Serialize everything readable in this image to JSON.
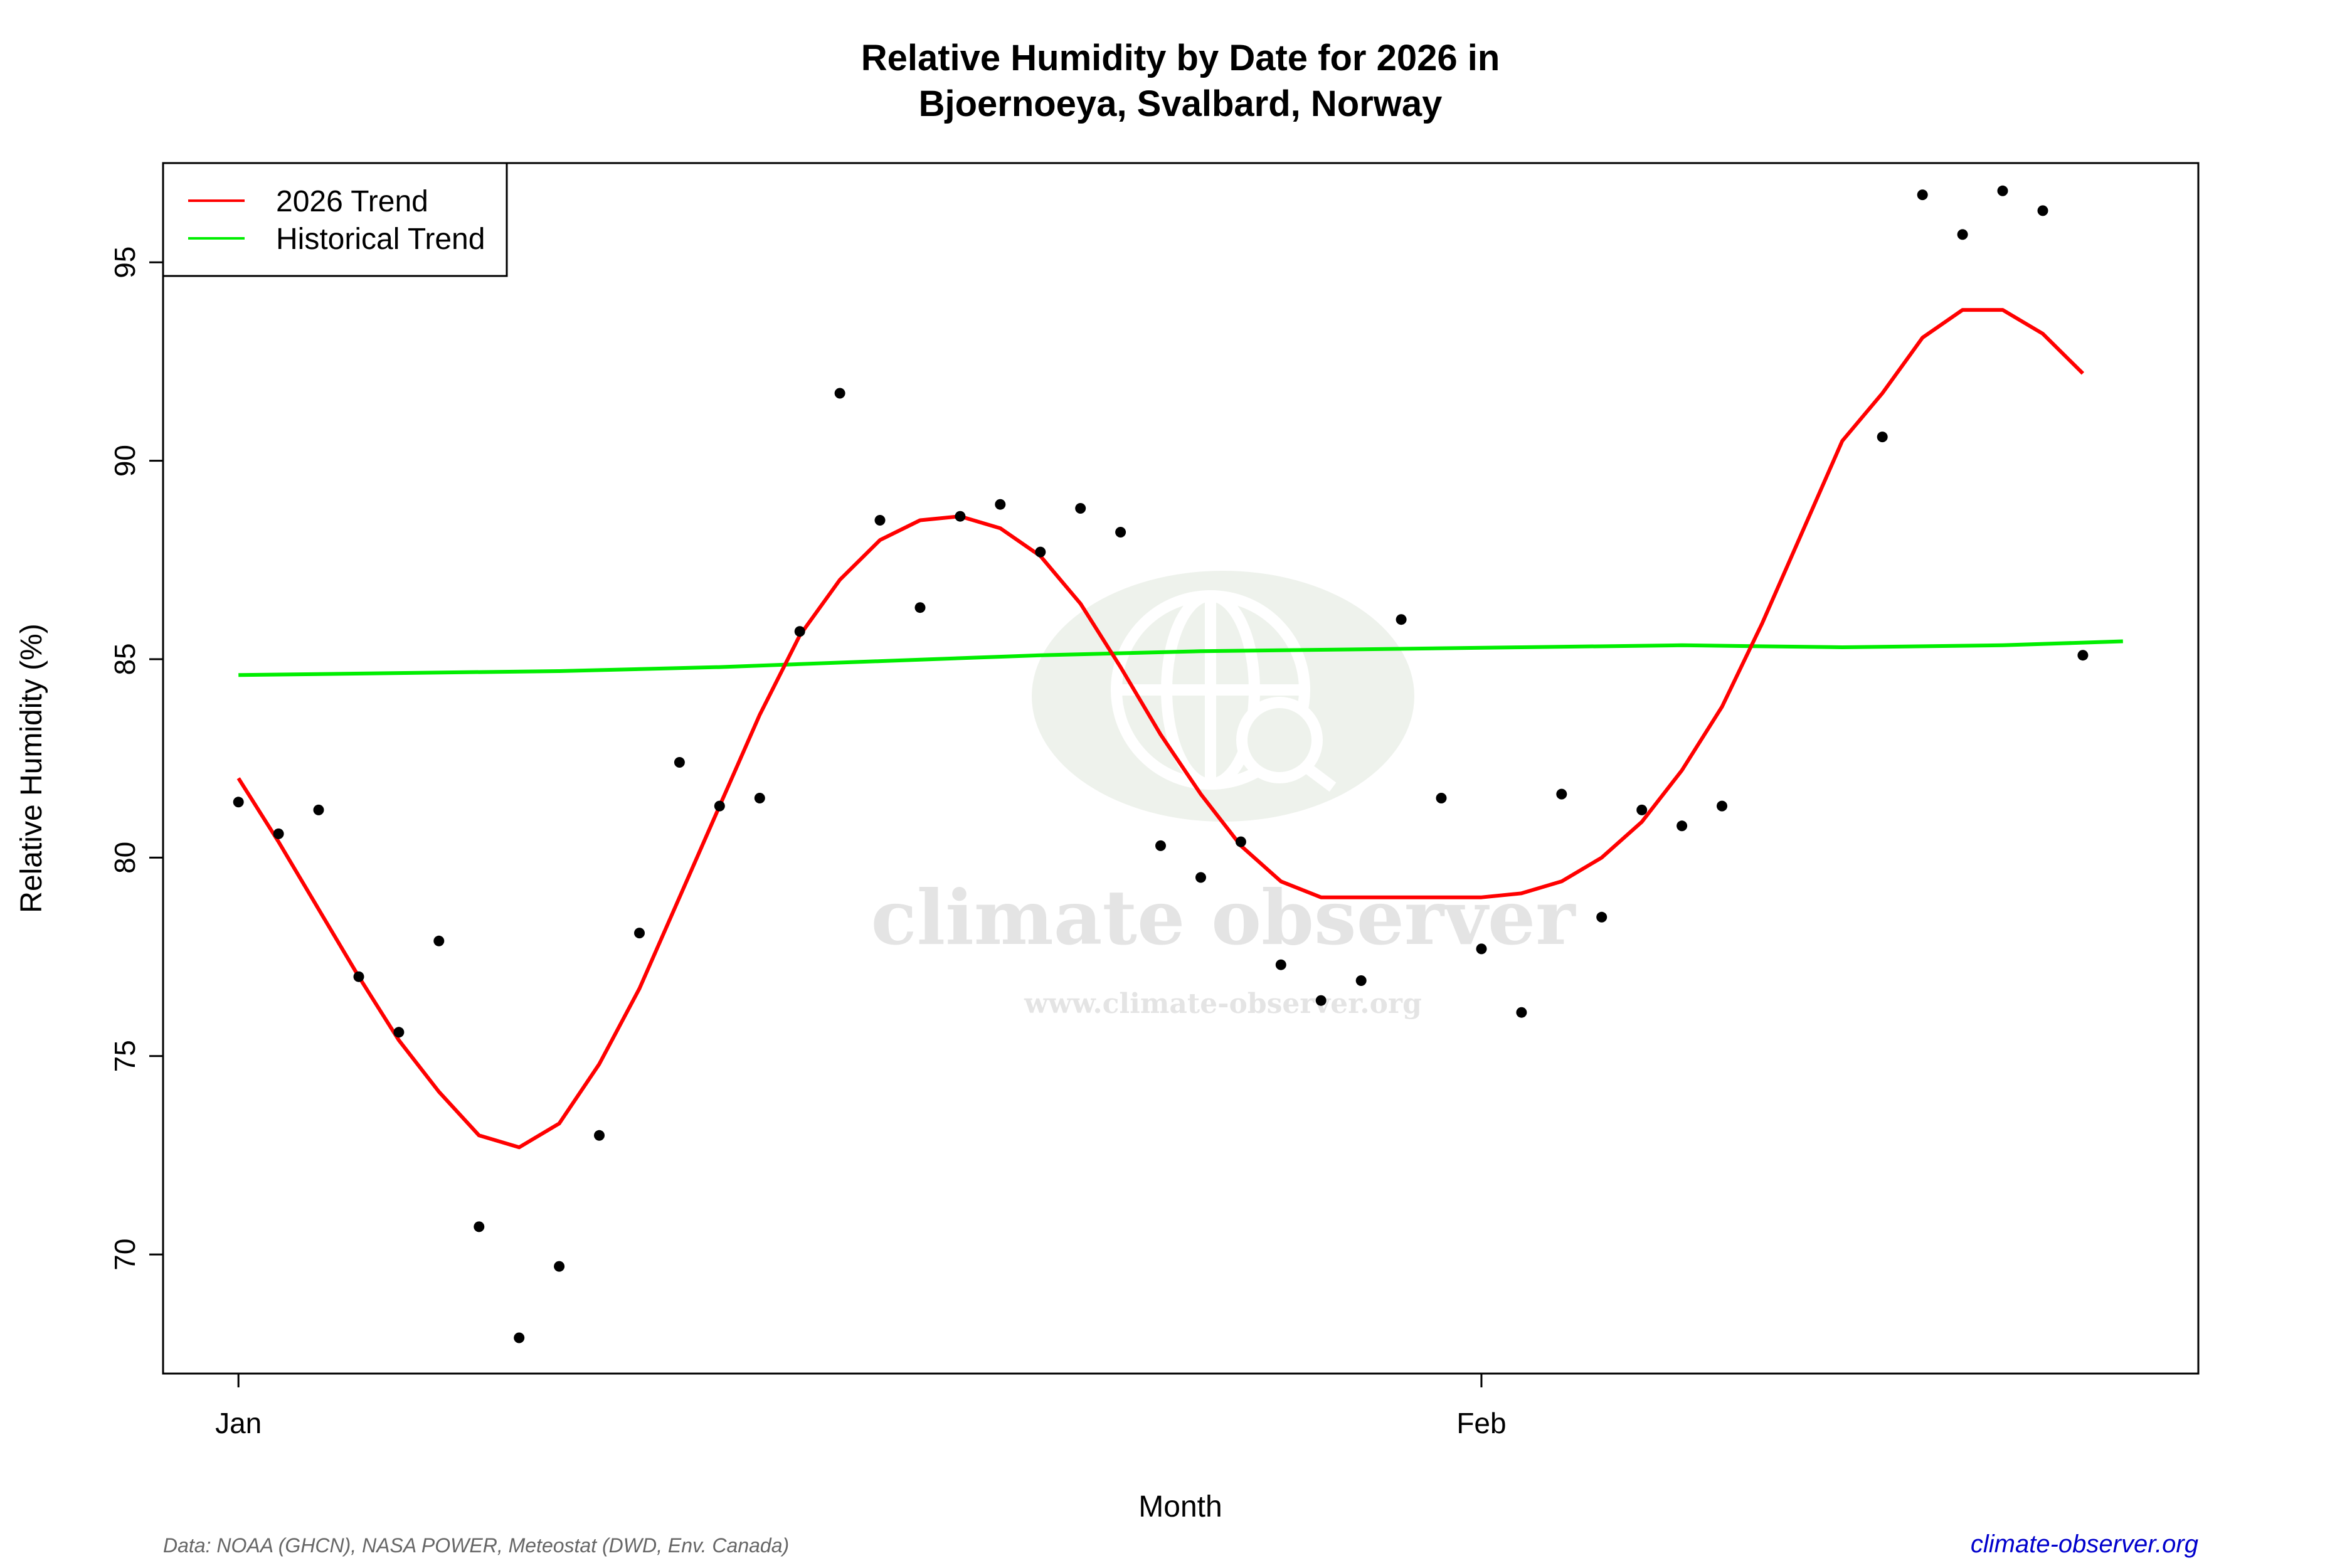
{
  "chart_data": {
    "type": "scatter",
    "title_line1": "Relative Humidity by Date for 2026 in",
    "title_line2": "Bjoernoeya, Svalbard, Norway",
    "xlabel": "Month",
    "ylabel": "Relative Humidity (%)",
    "x_ticks": [
      {
        "label": "Jan",
        "x": "2026-01-01"
      },
      {
        "label": "Feb",
        "x": "2026-02-01"
      }
    ],
    "xlim": [
      "2026-01-01",
      "2026-02-17"
    ],
    "y_ticks": [
      70,
      75,
      80,
      85,
      90,
      95
    ],
    "ylim": [
      67,
      97.5
    ],
    "legend_position": "top-left",
    "legend": [
      {
        "label": "2026 Trend",
        "color": "#ff0000"
      },
      {
        "label": "Historical Trend",
        "color": "#00ee00"
      }
    ],
    "observed": {
      "name": "",
      "color": "#000000",
      "points": [
        [
          "2026-01-01",
          81.4
        ],
        [
          "2026-01-02",
          80.6
        ],
        [
          "2026-01-03",
          81.2
        ],
        [
          "2026-01-04",
          77.0
        ],
        [
          "2026-01-05",
          75.6
        ],
        [
          "2026-01-06",
          77.9
        ],
        [
          "2026-01-07",
          70.7
        ],
        [
          "2026-01-08",
          67.9
        ],
        [
          "2026-01-09",
          69.7
        ],
        [
          "2026-01-10",
          73.0
        ],
        [
          "2026-01-11",
          78.1
        ],
        [
          "2026-01-12",
          82.4
        ],
        [
          "2026-01-13",
          81.3
        ],
        [
          "2026-01-14",
          81.5
        ],
        [
          "2026-01-15",
          85.7
        ],
        [
          "2026-01-16",
          91.7
        ],
        [
          "2026-01-17",
          88.5
        ],
        [
          "2026-01-18",
          86.3
        ],
        [
          "2026-01-19",
          88.6
        ],
        [
          "2026-01-20",
          88.9
        ],
        [
          "2026-01-21",
          87.7
        ],
        [
          "2026-01-22",
          88.8
        ],
        [
          "2026-01-23",
          88.2
        ],
        [
          "2026-01-24",
          80.3
        ],
        [
          "2026-01-25",
          79.5
        ],
        [
          "2026-01-26",
          80.4
        ],
        [
          "2026-01-27",
          77.3
        ],
        [
          "2026-01-28",
          76.4
        ],
        [
          "2026-01-29",
          76.9
        ],
        [
          "2026-01-30",
          86.0
        ],
        [
          "2026-01-31",
          81.5
        ],
        [
          "2026-02-01",
          77.7
        ],
        [
          "2026-02-02",
          76.1
        ],
        [
          "2026-02-03",
          81.6
        ],
        [
          "2026-02-04",
          78.5
        ],
        [
          "2026-02-05",
          81.2
        ],
        [
          "2026-02-06",
          80.8
        ],
        [
          "2026-02-07",
          81.3
        ],
        [
          "2026-02-11",
          90.6
        ],
        [
          "2026-02-12",
          96.7
        ],
        [
          "2026-02-13",
          95.7
        ],
        [
          "2026-02-14",
          96.8
        ],
        [
          "2026-02-15",
          96.3
        ],
        [
          "2026-02-16",
          85.1
        ]
      ]
    },
    "series": [
      {
        "name": "2026 Trend",
        "color": "#ff0000",
        "points": [
          [
            "2026-01-01",
            82.0
          ],
          [
            "2026-01-02",
            80.4
          ],
          [
            "2026-01-03",
            78.7
          ],
          [
            "2026-01-04",
            77.0
          ],
          [
            "2026-01-05",
            75.4
          ],
          [
            "2026-01-06",
            74.1
          ],
          [
            "2026-01-07",
            73.0
          ],
          [
            "2026-01-08",
            72.7
          ],
          [
            "2026-01-09",
            73.3
          ],
          [
            "2026-01-10",
            74.8
          ],
          [
            "2026-01-11",
            76.7
          ],
          [
            "2026-01-12",
            79.0
          ],
          [
            "2026-01-13",
            81.3
          ],
          [
            "2026-01-14",
            83.6
          ],
          [
            "2026-01-15",
            85.6
          ],
          [
            "2026-01-16",
            87.0
          ],
          [
            "2026-01-17",
            88.0
          ],
          [
            "2026-01-18",
            88.5
          ],
          [
            "2026-01-19",
            88.6
          ],
          [
            "2026-01-20",
            88.3
          ],
          [
            "2026-01-21",
            87.6
          ],
          [
            "2026-01-22",
            86.4
          ],
          [
            "2026-01-23",
            84.8
          ],
          [
            "2026-01-24",
            83.1
          ],
          [
            "2026-01-25",
            81.6
          ],
          [
            "2026-01-26",
            80.3
          ],
          [
            "2026-01-27",
            79.4
          ],
          [
            "2026-01-28",
            79.0
          ],
          [
            "2026-01-29",
            79.0
          ],
          [
            "2026-01-30",
            79.0
          ],
          [
            "2026-01-31",
            79.0
          ],
          [
            "2026-02-01",
            79.0
          ],
          [
            "2026-02-02",
            79.1
          ],
          [
            "2026-02-03",
            79.4
          ],
          [
            "2026-02-04",
            80.0
          ],
          [
            "2026-02-05",
            80.9
          ],
          [
            "2026-02-06",
            82.2
          ],
          [
            "2026-02-07",
            83.8
          ],
          [
            "2026-02-08",
            85.9
          ],
          [
            "2026-02-09",
            88.2
          ],
          [
            "2026-02-10",
            90.5
          ],
          [
            "2026-02-11",
            91.7
          ],
          [
            "2026-02-12",
            93.1
          ],
          [
            "2026-02-13",
            93.8
          ],
          [
            "2026-02-14",
            93.8
          ],
          [
            "2026-02-15",
            93.2
          ],
          [
            "2026-02-16",
            92.2
          ]
        ]
      },
      {
        "name": "Historical Trend",
        "color": "#00ee00",
        "points": [
          [
            "2026-01-01",
            84.6
          ],
          [
            "2026-01-05",
            84.65
          ],
          [
            "2026-01-09",
            84.7
          ],
          [
            "2026-01-13",
            84.8
          ],
          [
            "2026-01-17",
            84.95
          ],
          [
            "2026-01-21",
            85.1
          ],
          [
            "2026-01-25",
            85.2
          ],
          [
            "2026-01-29",
            85.25
          ],
          [
            "2026-02-02",
            85.3
          ],
          [
            "2026-02-06",
            85.35
          ],
          [
            "2026-02-10",
            85.3
          ],
          [
            "2026-02-14",
            85.35
          ],
          [
            "2026-02-17",
            85.45
          ]
        ]
      }
    ],
    "grid": false
  },
  "footer": {
    "credit": "Data: NOAA (GHCN), NASA POWER, Meteostat (DWD, Env. Canada)",
    "site": "climate-observer.org"
  },
  "watermark": {
    "name": "climate observer",
    "url": "www.climate-observer.org"
  }
}
